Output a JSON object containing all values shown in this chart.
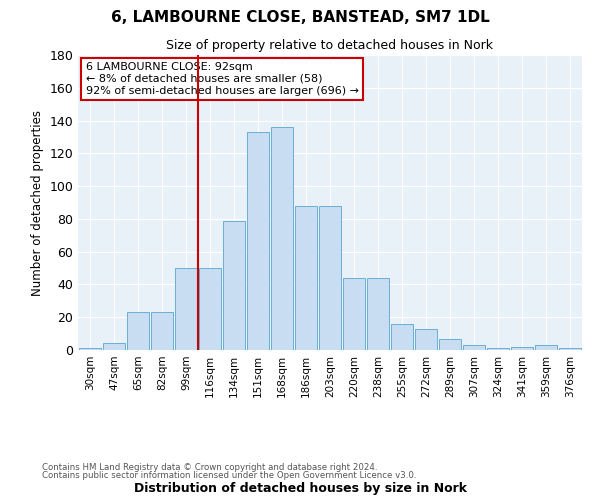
{
  "title": "6, LAMBOURNE CLOSE, BANSTEAD, SM7 1DL",
  "subtitle": "Size of property relative to detached houses in Nork",
  "xlabel": "Distribution of detached houses by size in Nork",
  "ylabel": "Number of detached properties",
  "bar_color": "#c8ddf2",
  "bar_edge_color": "#6baed6",
  "background_color": "#e8f0f8",
  "categories": [
    "30sqm",
    "47sqm",
    "65sqm",
    "82sqm",
    "99sqm",
    "116sqm",
    "134sqm",
    "151sqm",
    "168sqm",
    "186sqm",
    "203sqm",
    "220sqm",
    "238sqm",
    "255sqm",
    "272sqm",
    "289sqm",
    "307sqm",
    "324sqm",
    "341sqm",
    "359sqm",
    "376sqm"
  ],
  "values": [
    1,
    4,
    23,
    23,
    50,
    50,
    79,
    133,
    136,
    88,
    88,
    44,
    44,
    16,
    13,
    7,
    3,
    1,
    2,
    3,
    1
  ],
  "ylim": [
    0,
    180
  ],
  "yticks": [
    0,
    20,
    40,
    60,
    80,
    100,
    120,
    140,
    160,
    180
  ],
  "property_label": "6 LAMBOURNE CLOSE: 92sqm",
  "annotation_line1": "← 8% of detached houses are smaller (58)",
  "annotation_line2": "92% of semi-detached houses are larger (696) →",
  "vline_x": 4.5,
  "footer1": "Contains HM Land Registry data © Crown copyright and database right 2024.",
  "footer2": "Contains public sector information licensed under the Open Government Licence v3.0."
}
